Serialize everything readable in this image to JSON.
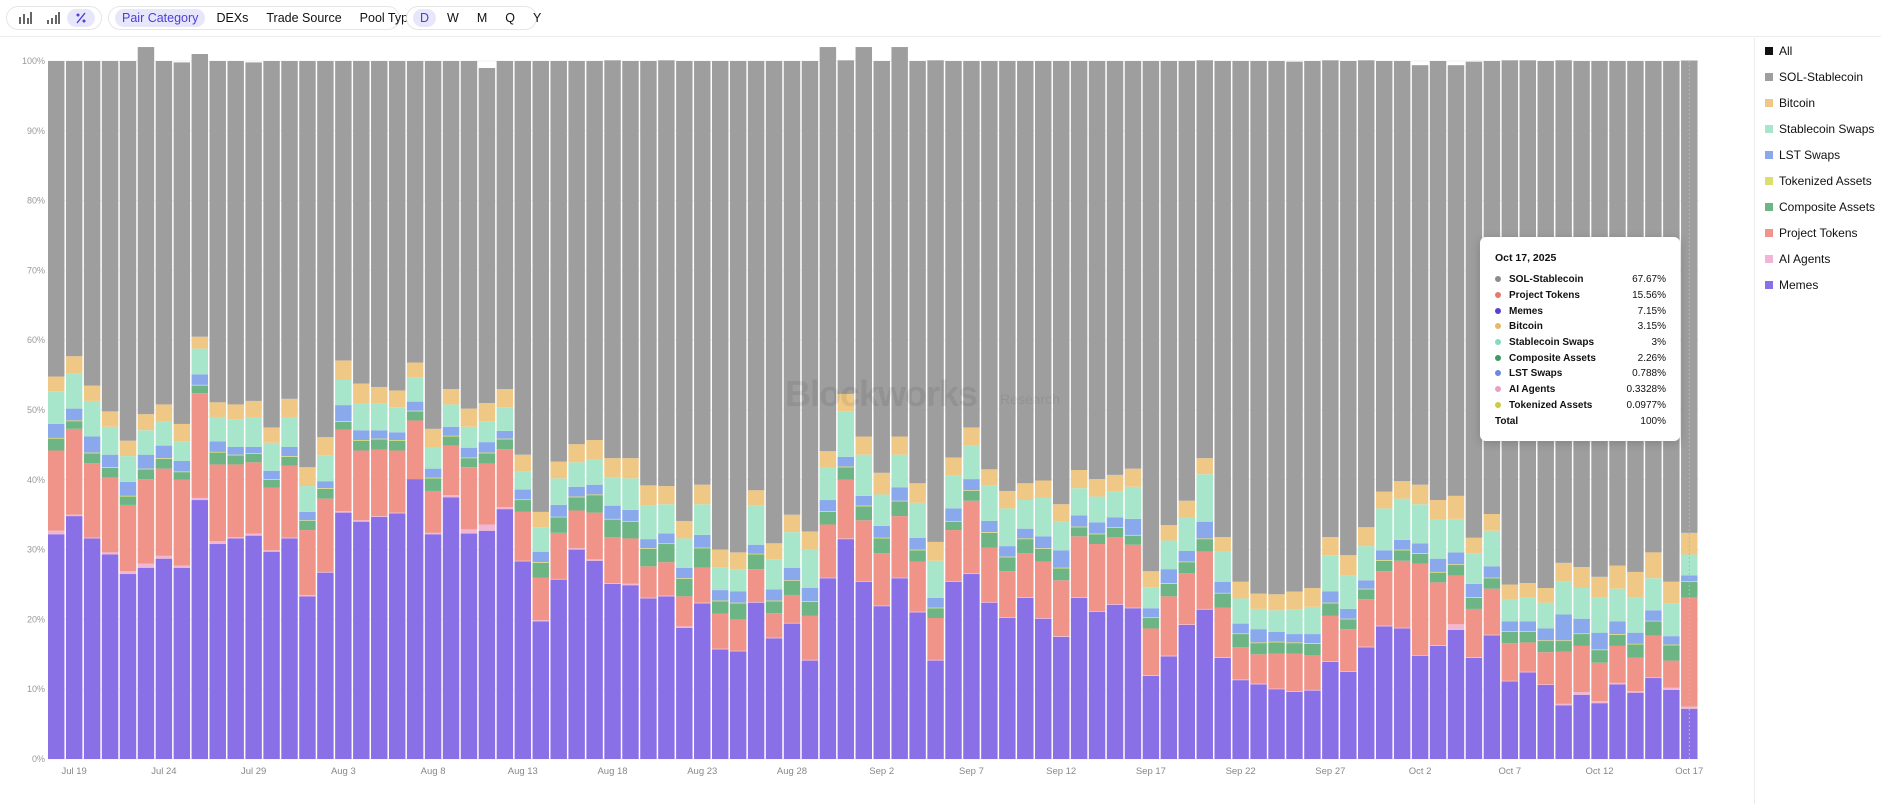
{
  "toolbar": {
    "chart_icons": [
      "bar-chart-icon",
      "bar-chart-rising-icon",
      "percent-icon"
    ],
    "categories": [
      "Pair Category",
      "DEXs",
      "Trade Source",
      "Pool Type"
    ],
    "active_category": "Pair Category",
    "periods": [
      "D",
      "W",
      "M",
      "Q",
      "Y"
    ],
    "active_period": "D"
  },
  "legend": [
    {
      "label": "All",
      "color": "#111111"
    },
    {
      "label": "SOL-Stablecoin",
      "color": "#9e9e9e"
    },
    {
      "label": "Bitcoin",
      "color": "#f0c886"
    },
    {
      "label": "Stablecoin Swaps",
      "color": "#a8e6cc"
    },
    {
      "label": "LST Swaps",
      "color": "#8aa8ec"
    },
    {
      "label": "Tokenized Assets",
      "color": "#dede6a"
    },
    {
      "label": "Composite Assets",
      "color": "#6db585"
    },
    {
      "label": "Project Tokens",
      "color": "#f0948a"
    },
    {
      "label": "AI Agents",
      "color": "#f0b6d4"
    },
    {
      "label": "Memes",
      "color": "#8a70e6"
    }
  ],
  "tooltip": {
    "date": "Oct 17, 2025",
    "rows": [
      {
        "name": "SOL-Stablecoin",
        "value": "67.67%",
        "color": "#8c8c8c"
      },
      {
        "name": "Project Tokens",
        "value": "15.56%",
        "color": "#e8786c"
      },
      {
        "name": "Memes",
        "value": "7.15%",
        "color": "#5b3fd0"
      },
      {
        "name": "Bitcoin",
        "value": "3.15%",
        "color": "#e8b866"
      },
      {
        "name": "Stablecoin Swaps",
        "value": "3%",
        "color": "#86dcb8"
      },
      {
        "name": "Composite Assets",
        "value": "2.26%",
        "color": "#3e9a62"
      },
      {
        "name": "LST Swaps",
        "value": "0.788%",
        "color": "#6a8ae0"
      },
      {
        "name": "AI Agents",
        "value": "0.3328%",
        "color": "#e8a0c8"
      },
      {
        "name": "Tokenized Assets",
        "value": "0.0977%",
        "color": "#cccc44"
      }
    ],
    "total_label": "Total",
    "total_value": "100%"
  },
  "watermark": {
    "brand": "Blockworks",
    "sub": "Research"
  },
  "chart_data": {
    "type": "bar",
    "stacked": true,
    "normalized": true,
    "ylim": [
      0,
      100
    ],
    "y_ticks": [
      "0%",
      "10%",
      "20%",
      "30%",
      "40%",
      "50%",
      "60%",
      "70%",
      "80%",
      "90%",
      "100%"
    ],
    "x_tick_labels": [
      "Jul 19",
      "Jul 24",
      "Jul 29",
      "Aug 3",
      "Aug 8",
      "Aug 13",
      "Aug 18",
      "Aug 23",
      "Aug 28",
      "Sep 2",
      "Sep 7",
      "Sep 12",
      "Sep 17",
      "Sep 22",
      "Sep 27",
      "Oct 2",
      "Oct 7",
      "Oct 12",
      "Oct 17"
    ],
    "date_range": [
      "Jul 18, 2025",
      "Oct 17, 2025"
    ],
    "grid": true,
    "legend_position": "right",
    "series_order": [
      "Memes",
      "AI Agents",
      "Project Tokens",
      "Composite Assets",
      "Tokenized Assets",
      "LST Swaps",
      "Stablecoin Swaps",
      "Bitcoin",
      "SOL-Stablecoin"
    ],
    "series": [
      {
        "name": "Memes",
        "color": "#8a70e6",
        "values": [
          32.2,
          34.8,
          31.6,
          29.3,
          26.5,
          27.4,
          28.7,
          27.4,
          37.1,
          30.8,
          31.6,
          32.0,
          29.7,
          31.6,
          23.3,
          26.7,
          35.3,
          34.0,
          34.7,
          35.2,
          40.1,
          32.2,
          37.5,
          32.3,
          32.7,
          35.8,
          28.3,
          19.7,
          25.7,
          30.0,
          28.4,
          25.1,
          24.9,
          23.0,
          23.3,
          18.8,
          22.3,
          15.7,
          15.4,
          22.4,
          17.3,
          19.4,
          14.1,
          25.9,
          31.5,
          25.4,
          21.9,
          25.9,
          21.0,
          14.1,
          25.4,
          26.5,
          22.4,
          20.2,
          23.1,
          20.1,
          17.5,
          23.1,
          21.1,
          22.1,
          21.6,
          11.9,
          14.7,
          19.2,
          21.4,
          14.5,
          11.3,
          10.7,
          10.0,
          9.6,
          9.8,
          13.9,
          12.5,
          16.0,
          19.0,
          18.7,
          14.8,
          16.2,
          18.5,
          14.5,
          17.7,
          11.1,
          12.4,
          10.6,
          7.7,
          9.2,
          8.0,
          10.7,
          9.5,
          11.6,
          9.9,
          7.2
        ]
      },
      {
        "name": "AI Agents",
        "color": "#f0b6d4",
        "values": [
          0.5,
          0.2,
          0.1,
          0.3,
          0.4,
          0.6,
          0.4,
          0.3,
          0.3,
          0.4,
          0.2,
          0.3,
          0.2,
          0.1,
          0.2,
          0.1,
          0.2,
          0.2,
          0.1,
          0.1,
          0.0,
          0.2,
          0.3,
          0.6,
          0.9,
          0.3,
          0.1,
          0.2,
          0.1,
          0.2,
          0.2,
          0.1,
          0.2,
          0.1,
          0.1,
          0.2,
          0.1,
          0.1,
          0.1,
          0.1,
          0.1,
          0.1,
          0.1,
          0.1,
          0.1,
          0.1,
          0.1,
          0.1,
          0.1,
          0.1,
          0.1,
          0.1,
          0.1,
          0.1,
          0.1,
          0.1,
          0.1,
          0.1,
          0.1,
          0.1,
          0.1,
          0.1,
          0.1,
          0.1,
          0.1,
          0.1,
          0.1,
          0.1,
          0.1,
          0.1,
          0.1,
          0.1,
          0.1,
          0.1,
          0.1,
          0.1,
          0.1,
          0.1,
          0.8,
          0.1,
          0.1,
          0.1,
          0.1,
          0.1,
          0.2,
          0.4,
          0.3,
          0.2,
          0.2,
          0.1,
          0.3,
          0.3
        ]
      },
      {
        "name": "Project Tokens",
        "color": "#f0948a",
        "values": [
          11.5,
          12.3,
          10.7,
          10.7,
          9.5,
          12.1,
          12.5,
          12.3,
          15.0,
          11.0,
          10.4,
          10.2,
          9.0,
          10.3,
          9.3,
          10.5,
          11.7,
          10.0,
          9.5,
          8.9,
          8.4,
          6.0,
          7.1,
          8.9,
          8.7,
          8.3,
          7.0,
          6.1,
          6.6,
          5.4,
          6.7,
          6.6,
          6.5,
          4.5,
          4.8,
          4.3,
          5.0,
          5.0,
          4.5,
          4.7,
          3.5,
          4.0,
          6.3,
          7.6,
          8.4,
          8.7,
          7.5,
          8.8,
          7.2,
          6.0,
          7.3,
          10.4,
          7.8,
          6.6,
          6.3,
          8.1,
          8.0,
          8.7,
          9.6,
          9.6,
          9.0,
          6.7,
          8.5,
          7.3,
          8.2,
          7.1,
          4.6,
          4.2,
          5.0,
          5.4,
          5.0,
          6.5,
          6.0,
          6.8,
          7.8,
          9.6,
          13.1,
          9.0,
          7.0,
          6.9,
          6.6,
          5.4,
          4.2,
          4.6,
          7.5,
          6.6,
          5.5,
          5.3,
          4.8,
          6.0,
          3.9,
          15.6
        ]
      },
      {
        "name": "Composite Assets",
        "color": "#6db585",
        "values": [
          1.7,
          1.1,
          1.4,
          1.4,
          1.2,
          1.4,
          1.4,
          1.1,
          1.1,
          1.7,
          1.3,
          1.2,
          1.1,
          1.3,
          1.3,
          1.4,
          1.1,
          1.4,
          1.5,
          1.4,
          1.3,
          1.8,
          1.3,
          1.3,
          1.5,
          1.4,
          1.7,
          2.1,
          2.2,
          1.9,
          2.5,
          2.5,
          2.4,
          2.5,
          2.6,
          2.5,
          2.8,
          1.8,
          2.3,
          2.1,
          1.7,
          2.0,
          2.0,
          1.8,
          1.8,
          2.0,
          2.1,
          2.1,
          1.6,
          1.4,
          1.2,
          1.4,
          2.1,
          2.0,
          2.0,
          1.8,
          1.7,
          1.3,
          1.4,
          1.3,
          1.3,
          1.5,
          1.8,
          1.6,
          1.8,
          2.0,
          1.9,
          1.6,
          1.6,
          1.5,
          1.6,
          1.8,
          1.4,
          1.4,
          1.5,
          1.5,
          1.4,
          1.4,
          1.5,
          1.6,
          1.5,
          1.6,
          1.5,
          1.6,
          1.5,
          1.7,
          1.8,
          1.6,
          1.9,
          2.0,
          2.2,
          2.3
        ]
      },
      {
        "name": "Tokenized Assets",
        "color": "#dede6a",
        "values": [
          0.1,
          0.1,
          0.1,
          0.1,
          0.1,
          0.1,
          0.1,
          0.1,
          0.1,
          0.1,
          0.1,
          0.1,
          0.1,
          0.1,
          0.1,
          0.1,
          0.1,
          0.1,
          0.1,
          0.1,
          0.1,
          0.1,
          0.1,
          0.1,
          0.1,
          0.1,
          0.1,
          0.1,
          0.1,
          0.1,
          0.1,
          0.1,
          0.1,
          0.1,
          0.1,
          0.1,
          0.1,
          0.1,
          0.1,
          0.1,
          0.1,
          0.1,
          0.1,
          0.1,
          0.1,
          0.1,
          0.1,
          0.1,
          0.1,
          0.1,
          0.1,
          0.1,
          0.1,
          0.1,
          0.1,
          0.1,
          0.1,
          0.1,
          0.1,
          0.1,
          0.1,
          0.1,
          0.1,
          0.1,
          0.1,
          0.1,
          0.1,
          0.1,
          0.1,
          0.1,
          0.1,
          0.1,
          0.1,
          0.1,
          0.1,
          0.1,
          0.1,
          0.1,
          0.1,
          0.1,
          0.1,
          0.1,
          0.1,
          0.1,
          0.1,
          0.1,
          0.1,
          0.1,
          0.1,
          0.1,
          0.1,
          0.1
        ]
      },
      {
        "name": "LST Swaps",
        "color": "#8aa8ec",
        "values": [
          2.0,
          1.7,
          2.3,
          1.8,
          2.0,
          2.0,
          1.8,
          1.5,
          1.5,
          1.5,
          1.1,
          0.9,
          1.2,
          1.3,
          1.2,
          1.0,
          2.3,
          1.4,
          1.2,
          1.1,
          1.3,
          1.3,
          1.3,
          1.4,
          1.5,
          1.1,
          1.4,
          1.5,
          1.7,
          1.4,
          1.4,
          1.9,
          1.6,
          1.3,
          1.4,
          1.5,
          1.8,
          1.5,
          1.6,
          1.3,
          1.6,
          1.8,
          1.9,
          1.6,
          1.4,
          1.4,
          1.7,
          1.9,
          1.7,
          1.4,
          1.8,
          1.6,
          1.6,
          1.5,
          1.4,
          1.7,
          2.5,
          1.6,
          1.6,
          1.4,
          2.3,
          1.3,
          2.0,
          1.5,
          2.4,
          1.6,
          1.4,
          1.9,
          1.4,
          1.2,
          1.3,
          1.6,
          1.4,
          1.2,
          1.4,
          1.4,
          1.4,
          1.9,
          1.7,
          1.9,
          1.6,
          1.4,
          1.4,
          1.7,
          3.7,
          2.1,
          2.4,
          1.8,
          1.6,
          1.5,
          1.2,
          0.8
        ]
      },
      {
        "name": "Stablecoin Swaps",
        "color": "#a8e6cc",
        "values": [
          4.7,
          5.0,
          5.1,
          4.0,
          3.7,
          3.5,
          3.4,
          2.8,
          3.7,
          3.5,
          3.9,
          4.3,
          4.0,
          4.3,
          3.7,
          3.7,
          3.6,
          3.9,
          3.8,
          3.6,
          3.5,
          3.1,
          3.2,
          3.0,
          3.0,
          3.4,
          2.6,
          3.5,
          3.8,
          3.5,
          3.6,
          4.0,
          4.5,
          4.8,
          4.2,
          4.2,
          4.4,
          3.2,
          3.2,
          5.6,
          4.3,
          5.1,
          5.5,
          4.6,
          6.5,
          5.9,
          4.5,
          4.7,
          5.0,
          5.3,
          4.7,
          4.8,
          5.1,
          5.4,
          4.1,
          5.5,
          4.1,
          3.9,
          3.7,
          3.7,
          4.6,
          3.0,
          4.1,
          4.8,
          6.8,
          4.4,
          3.6,
          2.9,
          3.1,
          3.5,
          3.9,
          5.2,
          4.8,
          4.9,
          6.0,
          5.9,
          5.6,
          5.6,
          4.8,
          4.3,
          5.1,
          3.1,
          3.4,
          3.7,
          4.7,
          4.4,
          5.1,
          4.7,
          5.1,
          4.6,
          4.7,
          3.0
        ]
      },
      {
        "name": "Bitcoin",
        "color": "#f0c886",
        "values": [
          2.1,
          2.5,
          2.2,
          2.2,
          2.2,
          2.3,
          2.5,
          2.5,
          1.7,
          2.1,
          2.2,
          2.3,
          2.2,
          2.6,
          2.7,
          2.6,
          2.8,
          2.8,
          2.4,
          2.4,
          2.1,
          2.6,
          2.2,
          2.6,
          2.6,
          2.6,
          2.4,
          2.2,
          2.4,
          2.6,
          2.8,
          2.8,
          2.9,
          2.9,
          2.6,
          2.5,
          2.8,
          2.6,
          2.4,
          2.2,
          2.3,
          2.5,
          2.6,
          2.4,
          2.5,
          2.6,
          3.1,
          2.6,
          2.8,
          2.7,
          2.6,
          2.6,
          2.3,
          2.5,
          2.4,
          2.5,
          2.5,
          2.6,
          2.5,
          2.4,
          2.6,
          2.3,
          2.2,
          2.4,
          2.3,
          2.0,
          2.4,
          2.2,
          2.3,
          2.6,
          2.7,
          2.6,
          2.9,
          2.7,
          2.4,
          2.5,
          2.8,
          2.8,
          3.3,
          2.3,
          2.4,
          2.2,
          2.1,
          2.1,
          2.7,
          3.0,
          2.9,
          3.3,
          3.6,
          3.7,
          3.1,
          3.1
        ]
      },
      {
        "name": "SOL-Stablecoin",
        "color": "#9e9e9e",
        "values": [
          45.2,
          42.3,
          46.5,
          50.2,
          54.4,
          52.6,
          49.2,
          51.8,
          40.5,
          48.9,
          49.2,
          48.5,
          52.5,
          48.4,
          58.2,
          53.9,
          42.9,
          46.2,
          46.7,
          47.2,
          43.2,
          52.7,
          47.0,
          49.8,
          48.0,
          47.0,
          56.4,
          64.6,
          57.4,
          54.9,
          54.3,
          57.0,
          56.9,
          60.8,
          61.0,
          65.9,
          60.7,
          70.0,
          70.4,
          61.5,
          69.1,
          65.0,
          67.4,
          57.9,
          47.8,
          55.8,
          59.0,
          55.8,
          60.5,
          69.0,
          56.8,
          52.5,
          58.5,
          61.6,
          60.5,
          60.1,
          63.5,
          58.6,
          59.9,
          59.3,
          58.4,
          73.1,
          66.5,
          63.0,
          57.0,
          68.2,
          74.6,
          76.3,
          76.4,
          75.9,
          75.5,
          68.3,
          70.8,
          66.9,
          61.7,
          60.2,
          60.1,
          62.9,
          61.7,
          68.2,
          64.9,
          75.1,
          74.9,
          75.5,
          72.0,
          72.5,
          73.9,
          72.3,
          73.2,
          70.4,
          74.6,
          67.67
        ]
      }
    ]
  }
}
